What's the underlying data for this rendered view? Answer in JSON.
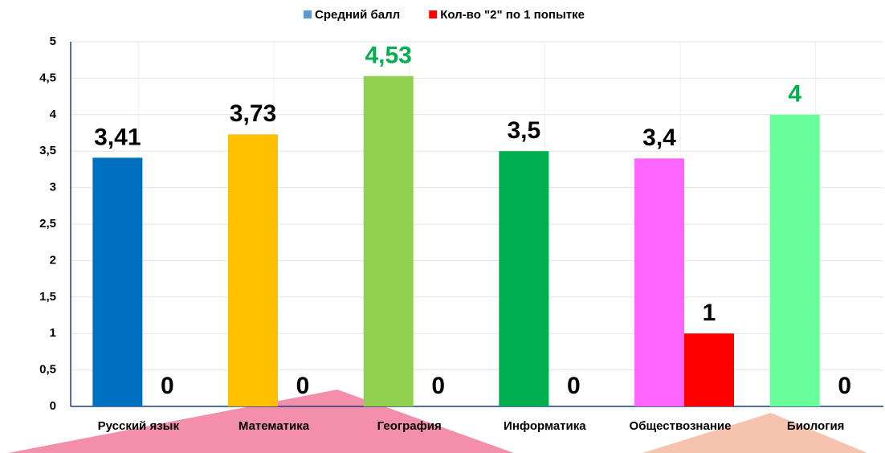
{
  "chart_data": {
    "type": "bar",
    "categories": [
      "Русский язык",
      "Математика",
      "География",
      "Информатика",
      "Обществознание",
      "Биология"
    ],
    "series": [
      {
        "name": "Средний балл",
        "color": "#5b9bd5",
        "colors": [
          "#0070c0",
          "#ffc000",
          "#92d050",
          "#00b050",
          "#ff66ff",
          "#66ff99"
        ],
        "values": [
          3.41,
          3.73,
          4.53,
          3.5,
          3.4,
          4
        ],
        "value_labels": [
          "3,41",
          "3,73",
          "4,53",
          "3,5",
          "3,4",
          "4"
        ],
        "value_label_colors": [
          "#000000",
          "#000000",
          "#00b050",
          "#000000",
          "#000000",
          "#00b050"
        ]
      },
      {
        "name": "Кол-во \"2\" по 1 попытке",
        "color": "#ff0000",
        "values": [
          0,
          0,
          0,
          0,
          1,
          0
        ]
      }
    ],
    "ylim": [
      0,
      5
    ],
    "yticks": [
      0,
      {
        "value": 0.5,
        "label": "0,5"
      },
      1,
      {
        "value": 1.5,
        "label": "1,5"
      },
      2,
      {
        "value": 2.5,
        "label": "2,5"
      },
      3,
      {
        "value": 3.5,
        "label": "3,5"
      },
      4,
      {
        "value": 4.5,
        "label": "4,5"
      },
      5
    ],
    "grid": true,
    "legend": "top"
  }
}
